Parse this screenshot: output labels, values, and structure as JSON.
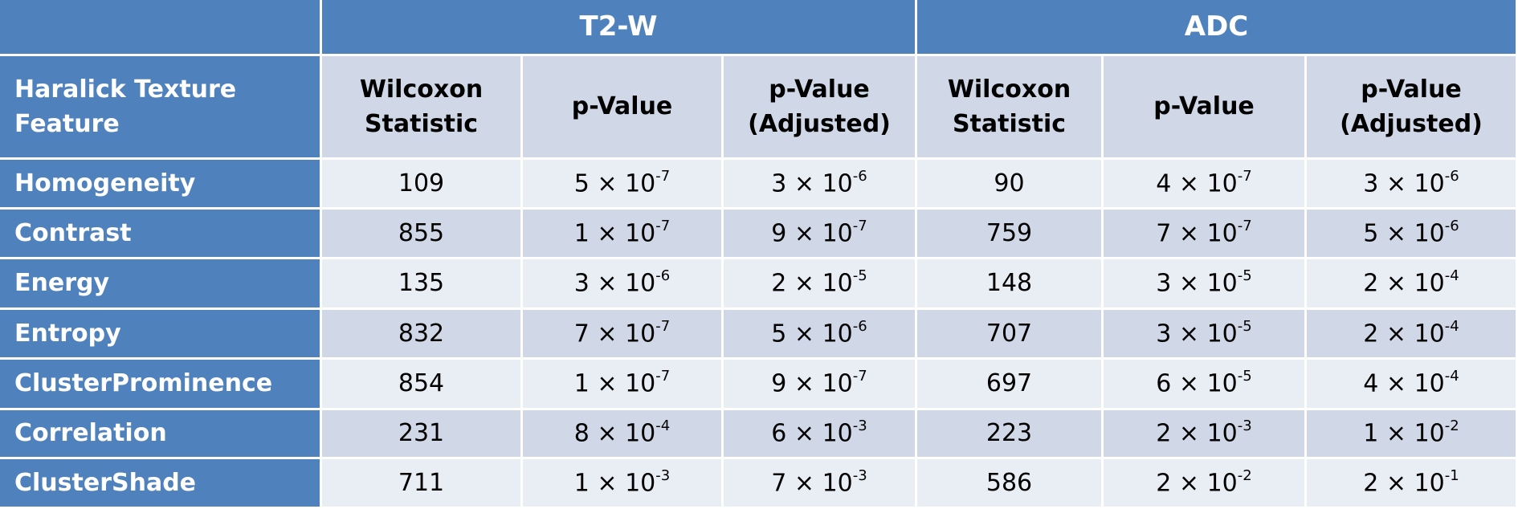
{
  "table": {
    "groups": [
      "T2-W",
      "ADC"
    ],
    "header": [
      "Haralick Texture Feature",
      "Wilcoxon Statistic",
      "p-Value",
      "p-Value (Adjusted)",
      "Wilcoxon Statistic",
      "p-Value",
      "p-Value (Adjusted)"
    ],
    "rows": [
      [
        "Homogeneity",
        109,
        {
          "text": "5 × 10",
          "exponent": "-7"
        },
        {
          "text": "3 × 10",
          "exponent": "-6"
        },
        90,
        {
          "text": "4 × 10",
          "exponent": "-7"
        },
        {
          "text": "3 × 10",
          "exponent": "-6"
        }
      ],
      [
        "Contrast",
        855,
        {
          "text": "1 × 10",
          "exponent": "-7"
        },
        {
          "text": "9 × 10",
          "exponent": "-7"
        },
        759,
        {
          "text": "7 × 10",
          "exponent": "-7"
        },
        {
          "text": "5 × 10",
          "exponent": "-6"
        }
      ],
      [
        "Energy",
        135,
        {
          "text": "3 × 10",
          "exponent": "-6"
        },
        {
          "text": "2 × 10",
          "exponent": "-5"
        },
        148,
        {
          "text": "3 × 10",
          "exponent": "-5"
        },
        {
          "text": "2 × 10",
          "exponent": "-4"
        }
      ],
      [
        "Entropy",
        832,
        {
          "text": "7 × 10",
          "exponent": "-7"
        },
        {
          "text": "5 × 10",
          "exponent": "-6"
        },
        707,
        {
          "text": "3 × 10",
          "exponent": "-5"
        },
        {
          "text": "2 × 10",
          "exponent": "-4"
        }
      ],
      [
        "ClusterProminence",
        854,
        {
          "text": "1 × 10",
          "exponent": "-7"
        },
        {
          "text": "9 × 10",
          "exponent": "-7"
        },
        697,
        {
          "text": "6 × 10",
          "exponent": "-5"
        },
        {
          "text": "4 × 10",
          "exponent": "-4"
        }
      ],
      [
        "Correlation",
        231,
        {
          "text": "8 × 10",
          "exponent": "-4"
        },
        {
          "text": "6 × 10",
          "exponent": "-3"
        },
        223,
        {
          "text": "2 × 10",
          "exponent": "-3"
        },
        {
          "text": "1 × 10",
          "exponent": "-2"
        }
      ],
      [
        "ClusterShade",
        711,
        {
          "text": "1 × 10",
          "exponent": "-3"
        },
        {
          "text": "7 × 10",
          "exponent": "-3"
        },
        586,
        {
          "text": "2 × 10",
          "exponent": "-2"
        },
        {
          "text": "2 × 10",
          "exponent": "-1"
        }
      ]
    ]
  }
}
